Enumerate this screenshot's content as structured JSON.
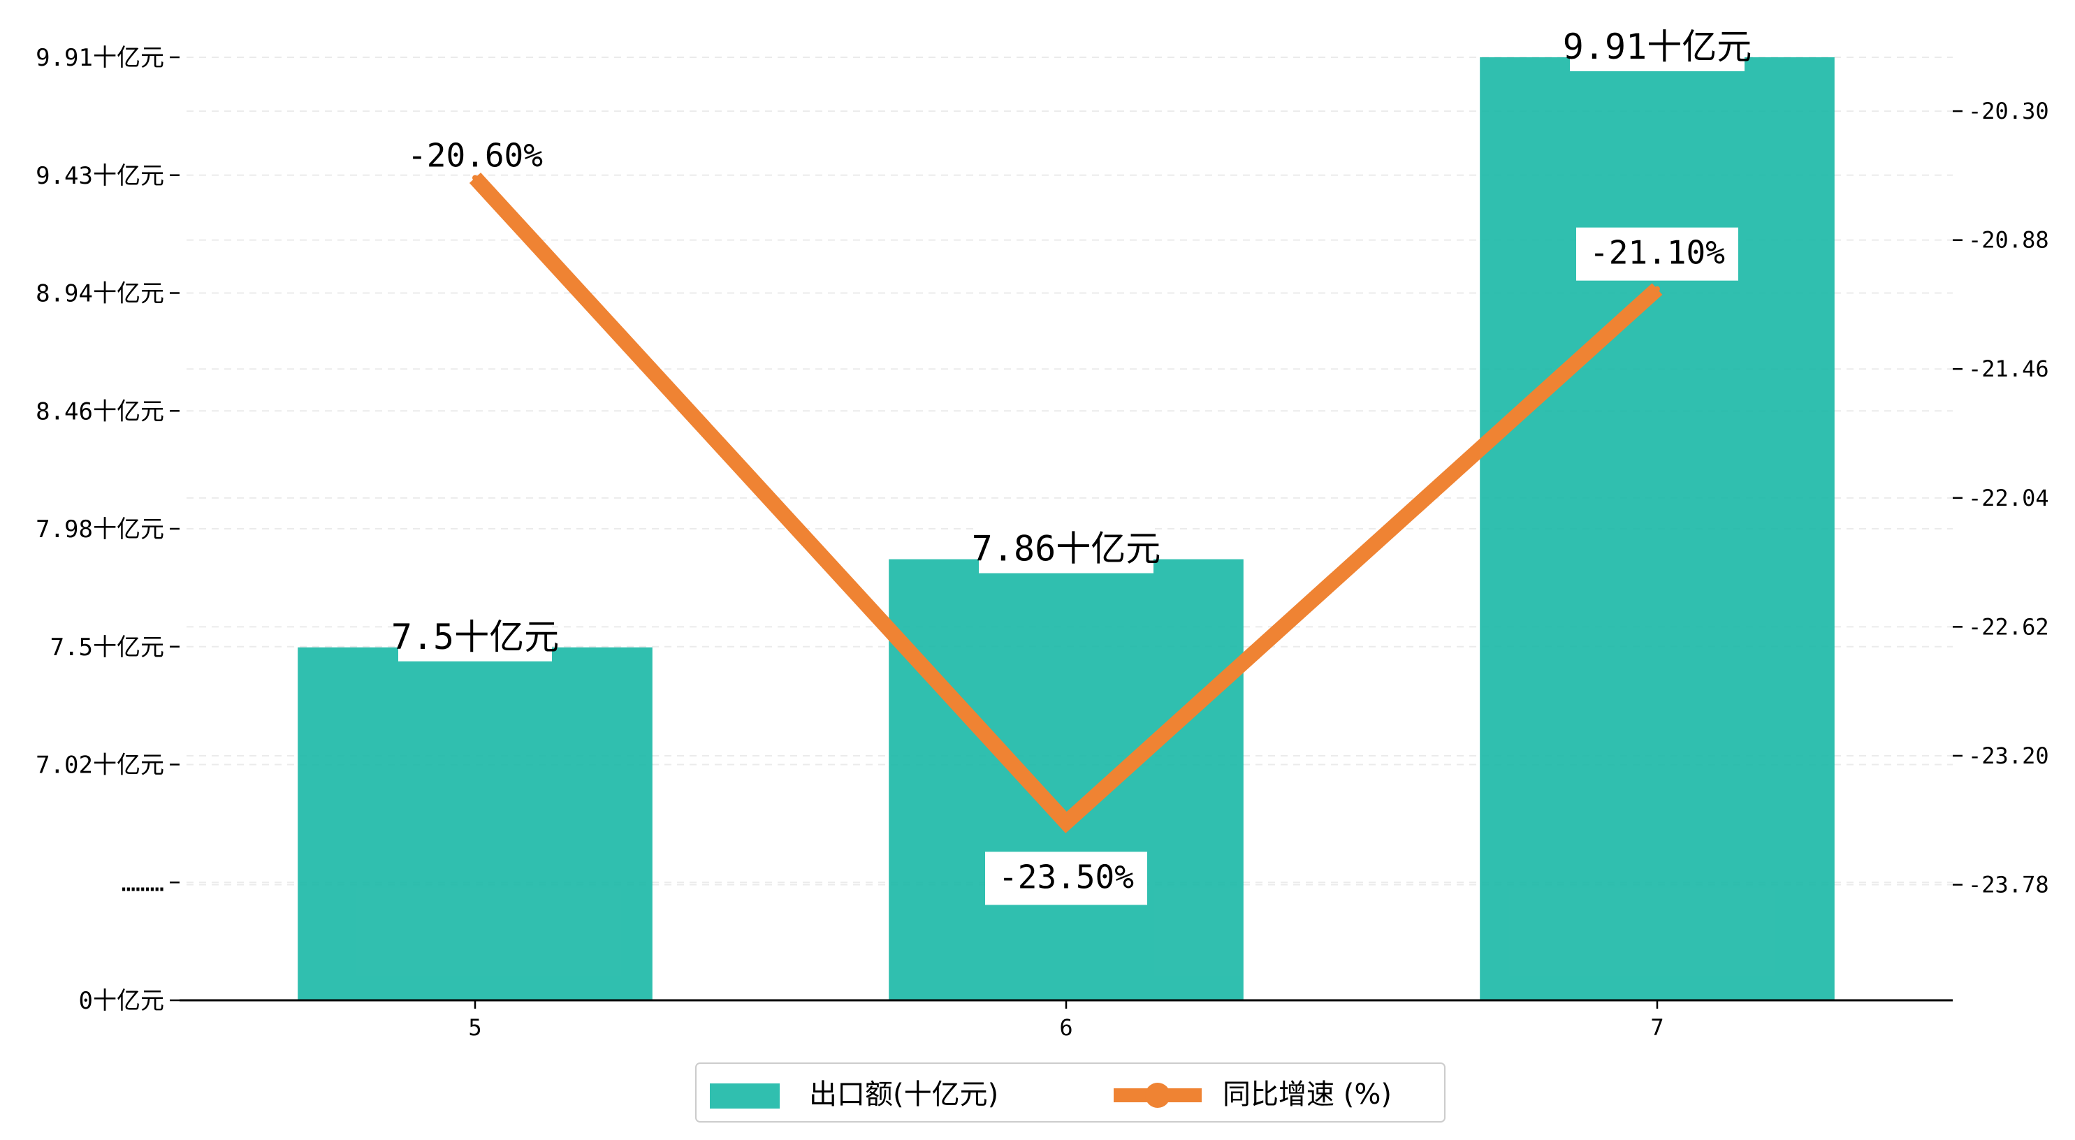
{
  "chart_data": {
    "type": "bar",
    "categories": [
      "5",
      "6",
      "7"
    ],
    "series": [
      {
        "name": "出口额(十亿元)",
        "type": "bar",
        "axis": "left",
        "values": [
          7.5,
          7.86,
          9.91
        ],
        "labels": [
          "7.5十亿元",
          "7.86十亿元",
          "9.91十亿元"
        ],
        "color": "#1ab8a6"
      },
      {
        "name": "同比增速 (%)",
        "type": "line",
        "axis": "right",
        "values": [
          -20.6,
          -23.5,
          -21.1
        ],
        "labels": [
          "-20.60%",
          "-23.50%",
          "-21.10%"
        ],
        "color": "#ef8333"
      }
    ],
    "left_axis": {
      "tick_labels": [
        "0十亿元",
        "………",
        "7.02十亿元",
        "7.5十亿元",
        "7.98十亿元",
        "8.46十亿元",
        "8.94十亿元",
        "9.43十亿元",
        "9.91十亿元"
      ],
      "scale": "broken",
      "ylim": [
        6.54,
        9.91
      ]
    },
    "right_axis": {
      "ticks": [
        -23.78,
        -23.2,
        -22.62,
        -22.04,
        -21.46,
        -20.88,
        -20.3
      ],
      "tick_labels": [
        "-23.78",
        "-23.20",
        "-22.62",
        "-22.04",
        "-21.46",
        "-20.88",
        "-20.30"
      ],
      "ylim": [
        -24.3,
        -19.8
      ]
    },
    "grid": true,
    "legend": {
      "position": "bottom-center",
      "entries": [
        "出口额(十亿元)",
        "同比增速 (%)"
      ]
    }
  }
}
